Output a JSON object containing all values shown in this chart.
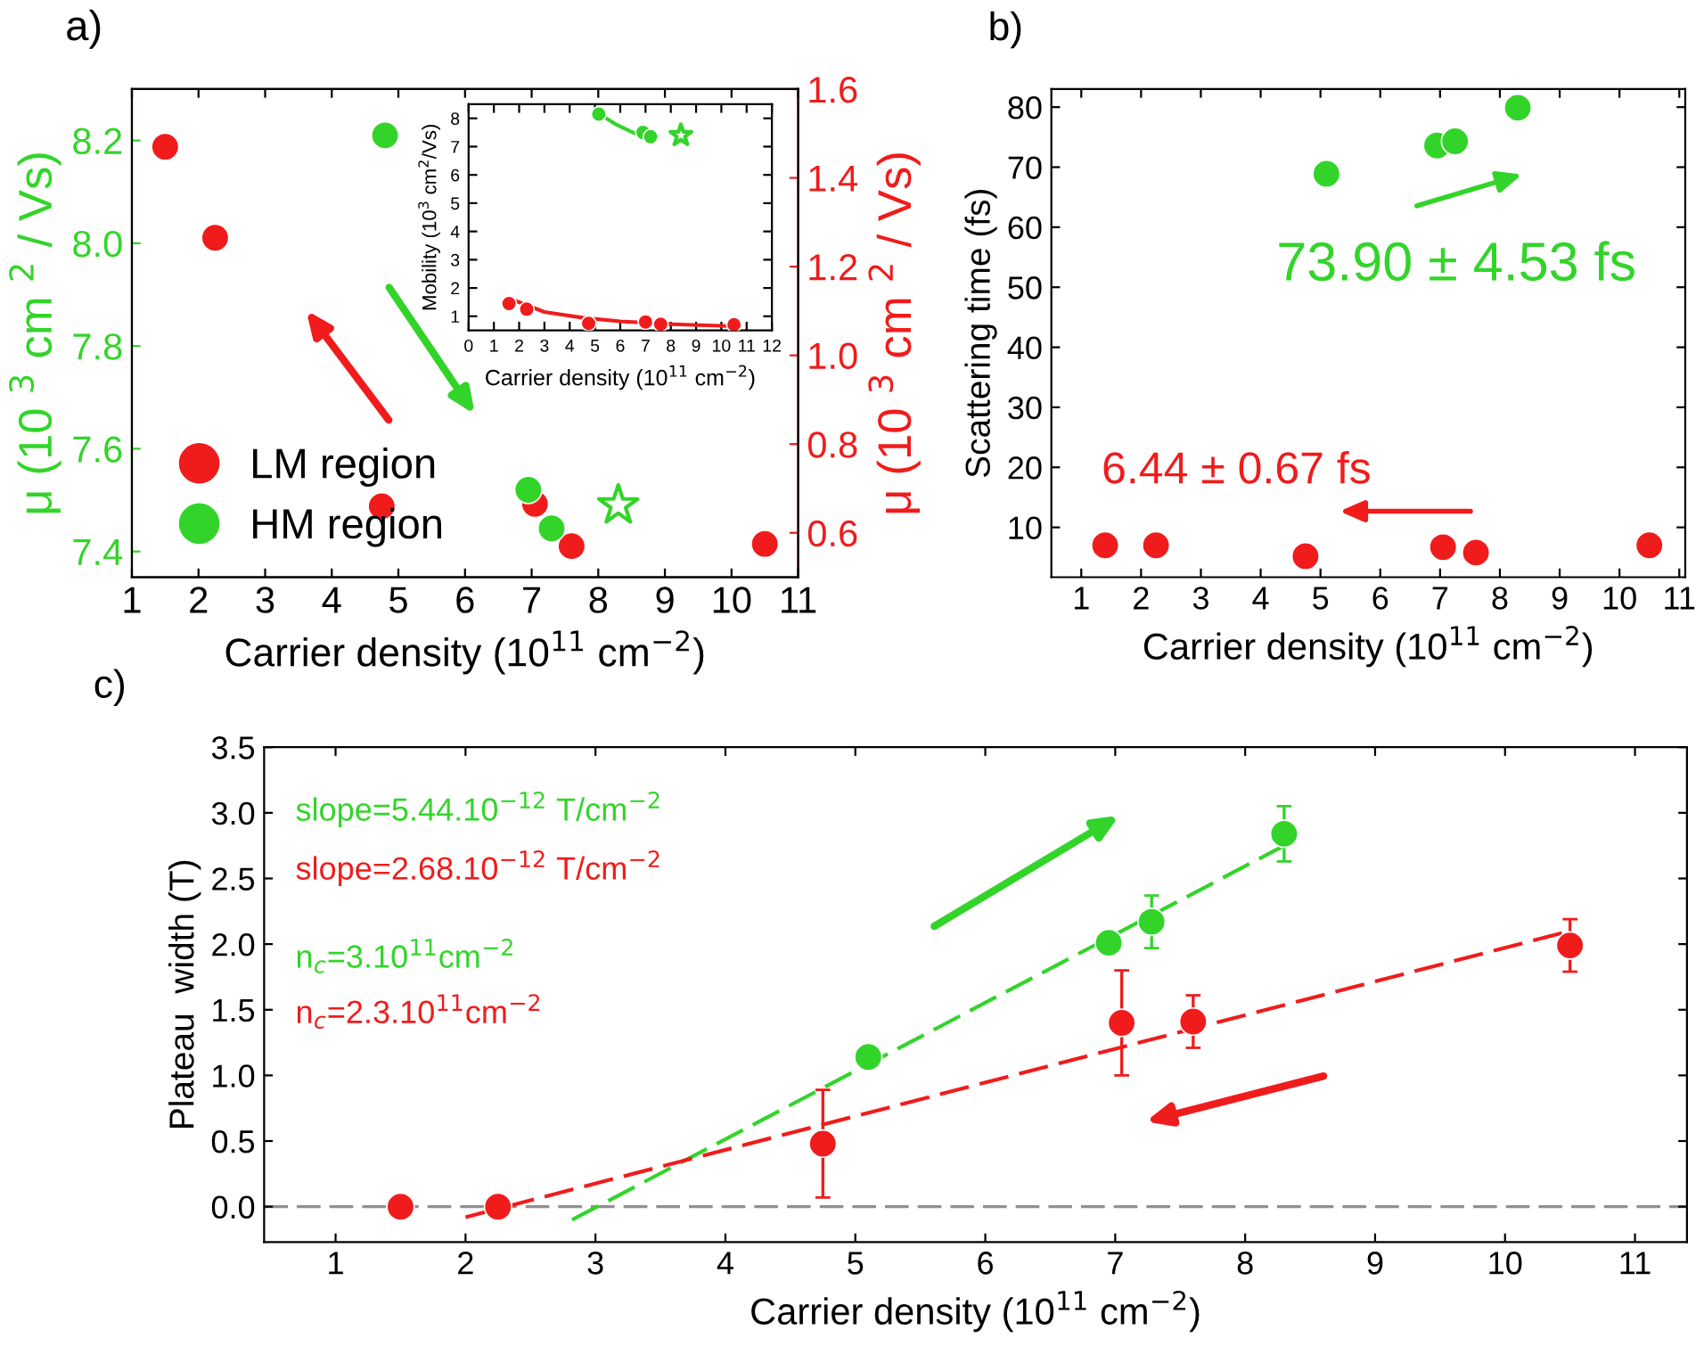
{
  "chart_data": [
    {
      "type": "scatter",
      "title": "a)",
      "xlabel": "Carrier density (10$^{11}$ cm$^{−2}$)",
      "ylabel": "μ (10 $^{3}$ cm $^{2}$ / Vs)",
      "y2label": "μ (10 $^{3}$ cm $^{2}$ / Vs)",
      "xlim": [
        1,
        11
      ],
      "xticks": [
        1,
        2,
        3,
        4,
        5,
        6,
        7,
        8,
        9,
        10,
        11
      ],
      "ylim": [
        7.35,
        8.3
      ],
      "yticks": [
        {
          "value": 7.4,
          "label": "7.4"
        },
        {
          "value": 7.6,
          "label": "7.6"
        },
        {
          "value": 7.8,
          "label": "7.8"
        },
        {
          "value": 8.0,
          "label": "8.0"
        },
        {
          "value": 8.2,
          "label": "8.2"
        }
      ],
      "y2lim": [
        0.5,
        1.6
      ],
      "y2ticks": [
        {
          "value": 0.6,
          "label": "0.6"
        },
        {
          "value": 0.8,
          "label": "0.8"
        },
        {
          "value": 1.0,
          "label": "1.0"
        },
        {
          "value": 1.2,
          "label": "1.2"
        },
        {
          "value": 1.4,
          "label": "1.4"
        },
        {
          "value": 1.6,
          "label": "1.6"
        }
      ],
      "legend": "bottom left",
      "grid": false,
      "marker": "circle",
      "series": [
        {
          "name": "LM region",
          "color": "#f01c1c",
          "axis": "y2",
          "x": [
            1.5,
            2.25,
            4.75,
            7.05,
            7.6,
            10.5
          ],
          "values": [
            1.47,
            1.265,
            0.66,
            0.665,
            0.57,
            0.575
          ]
        },
        {
          "name": "HM region",
          "color": "#33d42a",
          "x": [
            4.8,
            6.95,
            7.3
          ],
          "values": [
            8.21,
            7.52,
            7.445
          ]
        },
        {
          "color": "#33d42a",
          "marker": "star",
          "x": [
            8.3
          ],
          "values": [
            7.49
          ]
        }
      ]
    },
    {
      "type": "scatter",
      "xlabel": "Carrier density (10$^{11}$ cm$^{−2}$)",
      "ylabel": "Mobility (10$^{3}$ cm$^{2}$/Vs)",
      "xlim": [
        0,
        12
      ],
      "xticks": [
        0,
        1,
        2,
        3,
        4,
        5,
        6,
        7,
        8,
        9,
        10,
        11,
        12
      ],
      "ylim": [
        0.5,
        8.5
      ],
      "yticks": [
        1,
        2,
        3,
        4,
        5,
        6,
        7,
        8
      ],
      "grid": false,
      "marker": "circle",
      "series": [
        {
          "color": "#f01c1c",
          "x": [
            1.6,
            2.3,
            4.75,
            7.0,
            7.6,
            10.5
          ],
          "values": [
            1.45,
            1.25,
            0.75,
            0.8,
            0.72,
            0.7
          ]
        },
        {
          "color": "#33d42a",
          "x": [
            5.15,
            6.9,
            7.2
          ],
          "values": [
            8.15,
            7.5,
            7.35
          ]
        },
        {
          "color": "#33d42a",
          "marker": "star",
          "x": [
            8.4
          ],
          "values": [
            7.4
          ]
        },
        {
          "type": "line",
          "color": "#f01c1c",
          "marker": "none",
          "x": [
            1.7,
            3,
            4.5,
            6,
            8,
            10.5
          ],
          "values": [
            1.6,
            1.15,
            0.95,
            0.82,
            0.72,
            0.65
          ]
        },
        {
          "type": "line",
          "color": "#33d42a",
          "marker": "none",
          "x": [
            5.1,
            5.8,
            6.5,
            7.3
          ],
          "values": [
            8.2,
            7.8,
            7.5,
            7.2
          ]
        }
      ]
    },
    {
      "type": "scatter",
      "title": "b)",
      "xlabel": "Carrier density (10$^{11}$ cm$^{−2}$)",
      "ylabel": "Scattering time (fs)",
      "xlim": [
        0.5,
        11.1
      ],
      "xticks": [
        1,
        2,
        3,
        4,
        5,
        6,
        7,
        8,
        9,
        10,
        11
      ],
      "ylim": [
        1.7,
        83
      ],
      "yticks": [
        10,
        20,
        30,
        40,
        50,
        60,
        70,
        80
      ],
      "grid": false,
      "marker": "circle",
      "annotations": [
        "73.90 ± 4.53 fs",
        "6.44 ± 0.67 fs"
      ],
      "series": [
        {
          "color": "#33d42a",
          "x": [
            5.1,
            6.95,
            7.25,
            8.3
          ],
          "values": [
            68.9,
            73.6,
            74.3,
            79.9
          ]
        },
        {
          "color": "#f01c1c",
          "x": [
            1.4,
            2.25,
            4.75,
            7.05,
            7.6,
            10.5
          ],
          "values": [
            7.0,
            7.0,
            5.2,
            6.7,
            5.8,
            7.0
          ]
        }
      ]
    },
    {
      "type": "scatter",
      "title": "c)",
      "xlabel": "Carrier density (10$^{11}$ cm$^{−2}$)",
      "ylabel": "Plateau  width (T)",
      "xlim": [
        0.45,
        11.4
      ],
      "xticks": [
        1,
        2,
        3,
        4,
        5,
        6,
        7,
        8,
        9,
        10,
        11
      ],
      "ylim": [
        -0.27,
        3.5
      ],
      "yticks": [
        {
          "value": 0,
          "label": "0.0"
        },
        {
          "value": 0.5,
          "label": "0.5"
        },
        {
          "value": 1,
          "label": "1.0"
        },
        {
          "value": 1.5,
          "label": "1.5"
        },
        {
          "value": 2,
          "label": "2.0"
        },
        {
          "value": 2.5,
          "label": "2.5"
        },
        {
          "value": 3,
          "label": "3.0"
        },
        {
          "value": 3.5,
          "label": "3.5"
        }
      ],
      "grid": false,
      "marker": "circle",
      "annotations": [
        "slope=5.44.10$^{−12}$ T/cm$^{−2}$",
        "slope=2.68.10$^{−12}$ T/cm$^{−2}$",
        "n$_{c}$=3.10$^{11}$cm$^{−2}$",
        "n$_{c}$=2.3.10$^{11}$cm$^{−2}$"
      ],
      "ref_lines": [
        {
          "axis": "y",
          "value": 0,
          "color": "#909090",
          "line_style": "dashed"
        }
      ],
      "series": [
        {
          "color": "#33d42a",
          "x": [
            5.1,
            6.95,
            7.28,
            8.3
          ],
          "values": [
            1.14,
            2.01,
            2.17,
            2.84
          ],
          "errors": [
            0.07,
            0.07,
            0.2,
            0.21
          ]
        },
        {
          "color": "#f01c1c",
          "x": [
            1.5,
            2.25,
            4.75,
            7.05,
            7.6,
            10.5
          ],
          "values": [
            0.0,
            0.0,
            0.48,
            1.4,
            1.41,
            1.99
          ],
          "errors": [
            null,
            null,
            0.41,
            0.4,
            0.2,
            0.2
          ]
        },
        {
          "type": "line",
          "color": "#33d42a",
          "marker": "none",
          "line_style": "dashed",
          "x": [
            2.82,
            8.3
          ],
          "values": [
            -0.1,
            2.75
          ]
        },
        {
          "type": "line",
          "color": "#f01c1c",
          "marker": "none",
          "line_style": "dashed",
          "x": [
            2.0,
            10.5
          ],
          "values": [
            -0.08,
            2.1
          ]
        }
      ]
    }
  ]
}
